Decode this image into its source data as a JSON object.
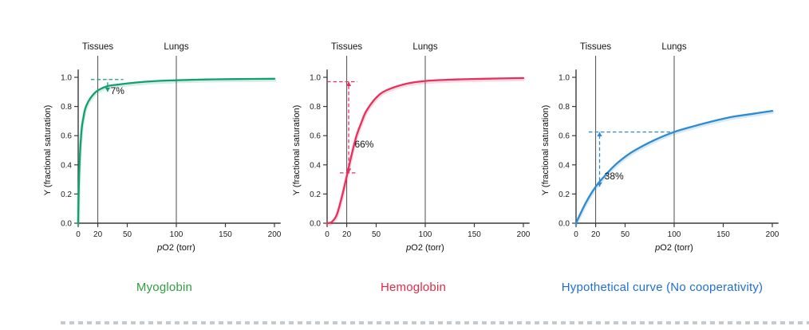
{
  "figure": {
    "background": "#ffffff"
  },
  "axis": {
    "ylabel": "Y (fractional saturation)",
    "xlabel_italic": "p",
    "xlabel_rest": "O2 (torr)",
    "x_ticks": [
      0,
      20,
      50,
      100,
      150,
      200
    ],
    "y_ticks": [
      0,
      0.2,
      0.4,
      0.6,
      0.8,
      1
    ],
    "x_max": 200,
    "y_max": 1,
    "vlines": [
      {
        "x": 20,
        "label": "Tissues"
      },
      {
        "x": 100,
        "label": "Lungs"
      }
    ]
  },
  "chart_data": [
    {
      "type": "line",
      "title": "Myoglobin",
      "color": "#14a06e",
      "title_color": "#2f9e41",
      "x": [
        0,
        0.5,
        1,
        2,
        3,
        4,
        5,
        7,
        10,
        15,
        20,
        30,
        40,
        60,
        80,
        100,
        130,
        160,
        200
      ],
      "y": [
        0,
        0.2,
        0.33,
        0.5,
        0.6,
        0.67,
        0.71,
        0.78,
        0.83,
        0.88,
        0.91,
        0.94,
        0.95,
        0.965,
        0.975,
        0.98,
        0.985,
        0.988,
        0.99
      ],
      "annotation": {
        "label": "7%",
        "label_x": 33,
        "label_y": 0.885,
        "hlines": [
          {
            "y": 0.985,
            "x1": 13,
            "x2": 46
          }
        ],
        "arrow": {
          "x": 30,
          "y1": 0.9,
          "y2": 0.985,
          "heads": "down"
        }
      }
    },
    {
      "type": "line",
      "title": "Hemoglobin",
      "color": "#e73060",
      "title_color": "#e62845",
      "x": [
        0,
        5,
        10,
        15,
        20,
        25,
        30,
        35,
        40,
        50,
        60,
        80,
        100,
        130,
        160,
        200
      ],
      "y": [
        0,
        0.01,
        0.06,
        0.18,
        0.32,
        0.47,
        0.6,
        0.69,
        0.77,
        0.86,
        0.91,
        0.955,
        0.975,
        0.985,
        0.99,
        0.995
      ],
      "annotation": {
        "label": "66%",
        "label_x": 28,
        "label_y": 0.52,
        "hlines": [
          {
            "y": 0.97,
            "x1": 0,
            "x2": 31
          },
          {
            "y": 0.345,
            "x1": 13,
            "x2": 29
          }
        ],
        "arrow": {
          "x": 22,
          "y1": 0.345,
          "y2": 0.97,
          "heads": "both"
        }
      }
    },
    {
      "type": "line",
      "title": "Hypothetical curve (No cooperativity)",
      "color": "#2e8bd0",
      "title_color": "#1d6fd6",
      "x": [
        0,
        10,
        20,
        30,
        40,
        50,
        60,
        80,
        100,
        120,
        140,
        160,
        180,
        200
      ],
      "y": [
        0,
        0.14,
        0.25,
        0.33,
        0.4,
        0.455,
        0.5,
        0.57,
        0.625,
        0.665,
        0.7,
        0.73,
        0.75,
        0.77
      ],
      "annotation": {
        "label": "38%",
        "label_x": 29,
        "label_y": 0.3,
        "hlines": [
          {
            "y": 0.625,
            "x1": 13,
            "x2": 100
          }
        ],
        "arrow": {
          "x": 24,
          "y1": 0.25,
          "y2": 0.625,
          "heads": "both"
        }
      }
    }
  ]
}
